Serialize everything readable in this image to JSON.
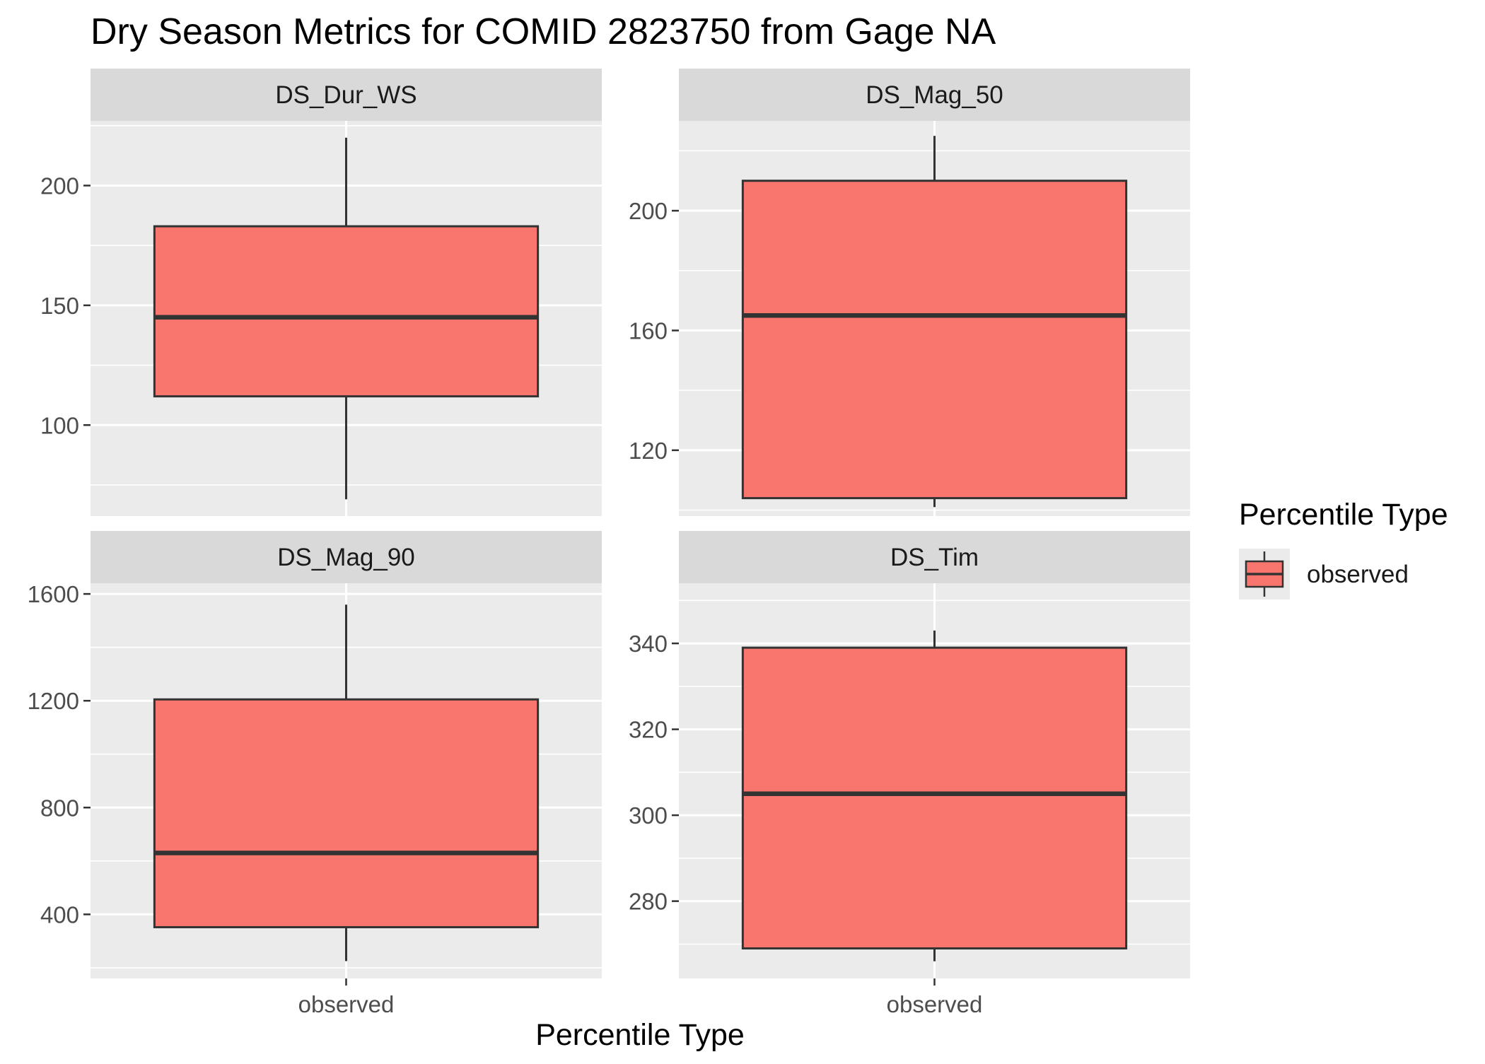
{
  "chart_data": {
    "type": "boxplot",
    "title": "Dry Season Metrics for COMID 2823750 from Gage NA",
    "xlabel": "Percentile Type",
    "ylabel": "",
    "colors": {
      "fill": "#F8766D",
      "stroke": "#333333",
      "panel": "#EBEBEB",
      "strip": "#D9D9D9",
      "grid": "#FFFFFF"
    },
    "legend": {
      "title": "Percentile Type",
      "position": "right",
      "entries": [
        {
          "label": "observed",
          "color": "#F8766D"
        }
      ]
    },
    "facets": [
      {
        "name": "DS_Dur_WS",
        "ylim": [
          62,
          227
        ],
        "ticks": [
          100,
          150,
          200
        ],
        "categories": [
          "observed"
        ],
        "box": {
          "category": "observed",
          "min": 69,
          "q1": 112,
          "median": 145,
          "q3": 183,
          "max": 220
        }
      },
      {
        "name": "DS_Mag_50",
        "ylim": [
          98,
          230
        ],
        "ticks": [
          120,
          160,
          200
        ],
        "categories": [
          "observed"
        ],
        "box": {
          "category": "observed",
          "min": 101,
          "q1": 104,
          "median": 165,
          "q3": 210,
          "max": 225
        }
      },
      {
        "name": "DS_Mag_90",
        "ylim": [
          160,
          1640
        ],
        "ticks": [
          400,
          800,
          1200,
          1600
        ],
        "categories": [
          "observed"
        ],
        "box": {
          "category": "observed",
          "min": 225,
          "q1": 352,
          "median": 630,
          "q3": 1205,
          "max": 1560
        }
      },
      {
        "name": "DS_Tim",
        "ylim": [
          262,
          354
        ],
        "ticks": [
          280,
          300,
          320,
          340
        ],
        "categories": [
          "observed"
        ],
        "box": {
          "category": "observed",
          "min": 266,
          "q1": 269,
          "median": 305,
          "q3": 339,
          "max": 343
        }
      }
    ]
  }
}
